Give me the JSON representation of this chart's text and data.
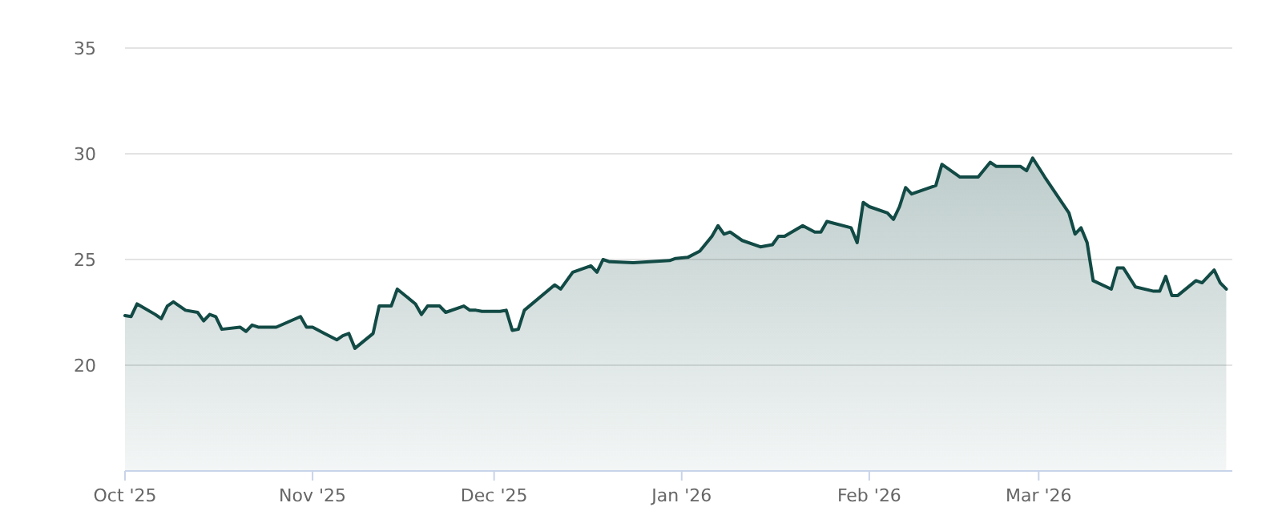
{
  "chart_data": {
    "type": "area",
    "xlim": [
      "2025-10-01",
      "2026-04-02"
    ],
    "ylim": [
      15,
      35
    ],
    "yticks": [
      20,
      25,
      30,
      35
    ],
    "grid": "y",
    "xticks": [
      {
        "value": "2025-10-01",
        "label": "Oct '25"
      },
      {
        "value": "2025-11-01",
        "label": "Nov '25"
      },
      {
        "value": "2025-12-01",
        "label": "Dec '25"
      },
      {
        "value": "2026-01-01",
        "label": "Jan '26"
      },
      {
        "value": "2026-02-01",
        "label": "Feb '26"
      },
      {
        "value": "2026-03-01",
        "label": "Mar '26"
      }
    ],
    "x": [
      "2025-10-01",
      "2025-10-02",
      "2025-10-03",
      "2025-10-06",
      "2025-10-07",
      "2025-10-08",
      "2025-10-09",
      "2025-10-11",
      "2025-10-13",
      "2025-10-14",
      "2025-10-15",
      "2025-10-16",
      "2025-10-17",
      "2025-10-20",
      "2025-10-21",
      "2025-10-22",
      "2025-10-23",
      "2025-10-26",
      "2025-10-30",
      "2025-10-31",
      "2025-11-01",
      "2025-11-03",
      "2025-11-05",
      "2025-11-06",
      "2025-11-07",
      "2025-11-08",
      "2025-11-11",
      "2025-11-12",
      "2025-11-14",
      "2025-11-15",
      "2025-11-18",
      "2025-11-19",
      "2025-11-20",
      "2025-11-22",
      "2025-11-23",
      "2025-11-26",
      "2025-11-27",
      "2025-11-28",
      "2025-11-29",
      "2025-12-02",
      "2025-12-03",
      "2025-12-04",
      "2025-12-05",
      "2025-12-06",
      "2025-12-11",
      "2025-12-12",
      "2025-12-14",
      "2025-12-17",
      "2025-12-18",
      "2025-12-19",
      "2025-12-20",
      "2025-12-24",
      "2025-12-30",
      "2025-12-31",
      "2026-01-02",
      "2026-01-04",
      "2026-01-06",
      "2026-01-07",
      "2026-01-08",
      "2026-01-09",
      "2026-01-11",
      "2026-01-14",
      "2026-01-16",
      "2026-01-17",
      "2026-01-18",
      "2026-01-21",
      "2026-01-23",
      "2026-01-24",
      "2026-01-25",
      "2026-01-29",
      "2026-01-30",
      "2026-01-31",
      "2026-02-01",
      "2026-02-04",
      "2026-02-05",
      "2026-02-06",
      "2026-02-07",
      "2026-02-08",
      "2026-02-10",
      "2026-02-12",
      "2026-02-13",
      "2026-02-16",
      "2026-02-19",
      "2026-02-21",
      "2026-02-22",
      "2026-02-26",
      "2026-02-27",
      "2026-02-28",
      "2026-03-02",
      "2026-03-06",
      "2026-03-07",
      "2026-03-08",
      "2026-03-09",
      "2026-03-10",
      "2026-03-13",
      "2026-03-14",
      "2026-03-15",
      "2026-03-17",
      "2026-03-20",
      "2026-03-21",
      "2026-03-22",
      "2026-03-23",
      "2026-03-24",
      "2026-03-27",
      "2026-03-28",
      "2026-03-30",
      "2026-03-31",
      "2026-04-01"
    ],
    "series": [
      {
        "color": "#124a45",
        "values": [
          22.35,
          22.3,
          22.9,
          22.4,
          22.2,
          22.8,
          23.0,
          22.6,
          22.5,
          22.1,
          22.4,
          22.3,
          21.7,
          21.8,
          21.6,
          21.9,
          21.8,
          21.8,
          22.3,
          21.8,
          21.8,
          21.5,
          21.2,
          21.4,
          21.5,
          20.8,
          21.5,
          22.8,
          22.8,
          23.6,
          22.9,
          22.4,
          22.8,
          22.8,
          22.5,
          22.8,
          22.6,
          22.6,
          22.55,
          22.55,
          22.6,
          21.65,
          21.7,
          22.6,
          23.8,
          23.6,
          24.4,
          24.7,
          24.4,
          25.0,
          24.9,
          24.85,
          24.95,
          25.05,
          25.1,
          25.4,
          26.1,
          26.6,
          26.2,
          26.3,
          25.9,
          25.6,
          25.7,
          26.1,
          26.1,
          26.6,
          26.3,
          26.3,
          26.8,
          26.5,
          25.8,
          27.7,
          27.5,
          27.2,
          26.9,
          27.5,
          28.4,
          28.1,
          28.3,
          28.5,
          29.5,
          28.9,
          28.9,
          29.6,
          29.4,
          29.4,
          29.2,
          29.8,
          28.9,
          27.2,
          26.2,
          26.5,
          25.8,
          24.0,
          23.6,
          24.6,
          24.6,
          23.7,
          23.5,
          23.5,
          24.2,
          23.3,
          23.3,
          24.0,
          23.9,
          24.5,
          23.9,
          23.6
        ]
      }
    ]
  }
}
